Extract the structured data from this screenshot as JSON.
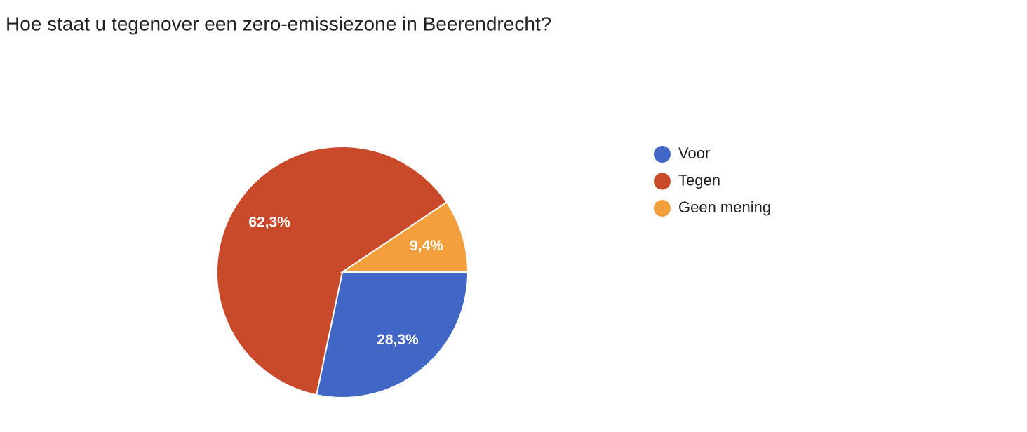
{
  "chart_data": {
    "type": "pie",
    "title": "Hoe staat u tegenover een zero-emissiezone in Beerendrecht?",
    "categories": [
      "Voor",
      "Tegen",
      "Geen mening"
    ],
    "values": [
      28.3,
      62.3,
      9.4
    ],
    "value_labels": [
      "28,3%",
      "62,3%",
      "9,4%"
    ],
    "colors": [
      "#4166c6",
      "#c94a2a",
      "#f1a03d"
    ],
    "legend": "right"
  }
}
